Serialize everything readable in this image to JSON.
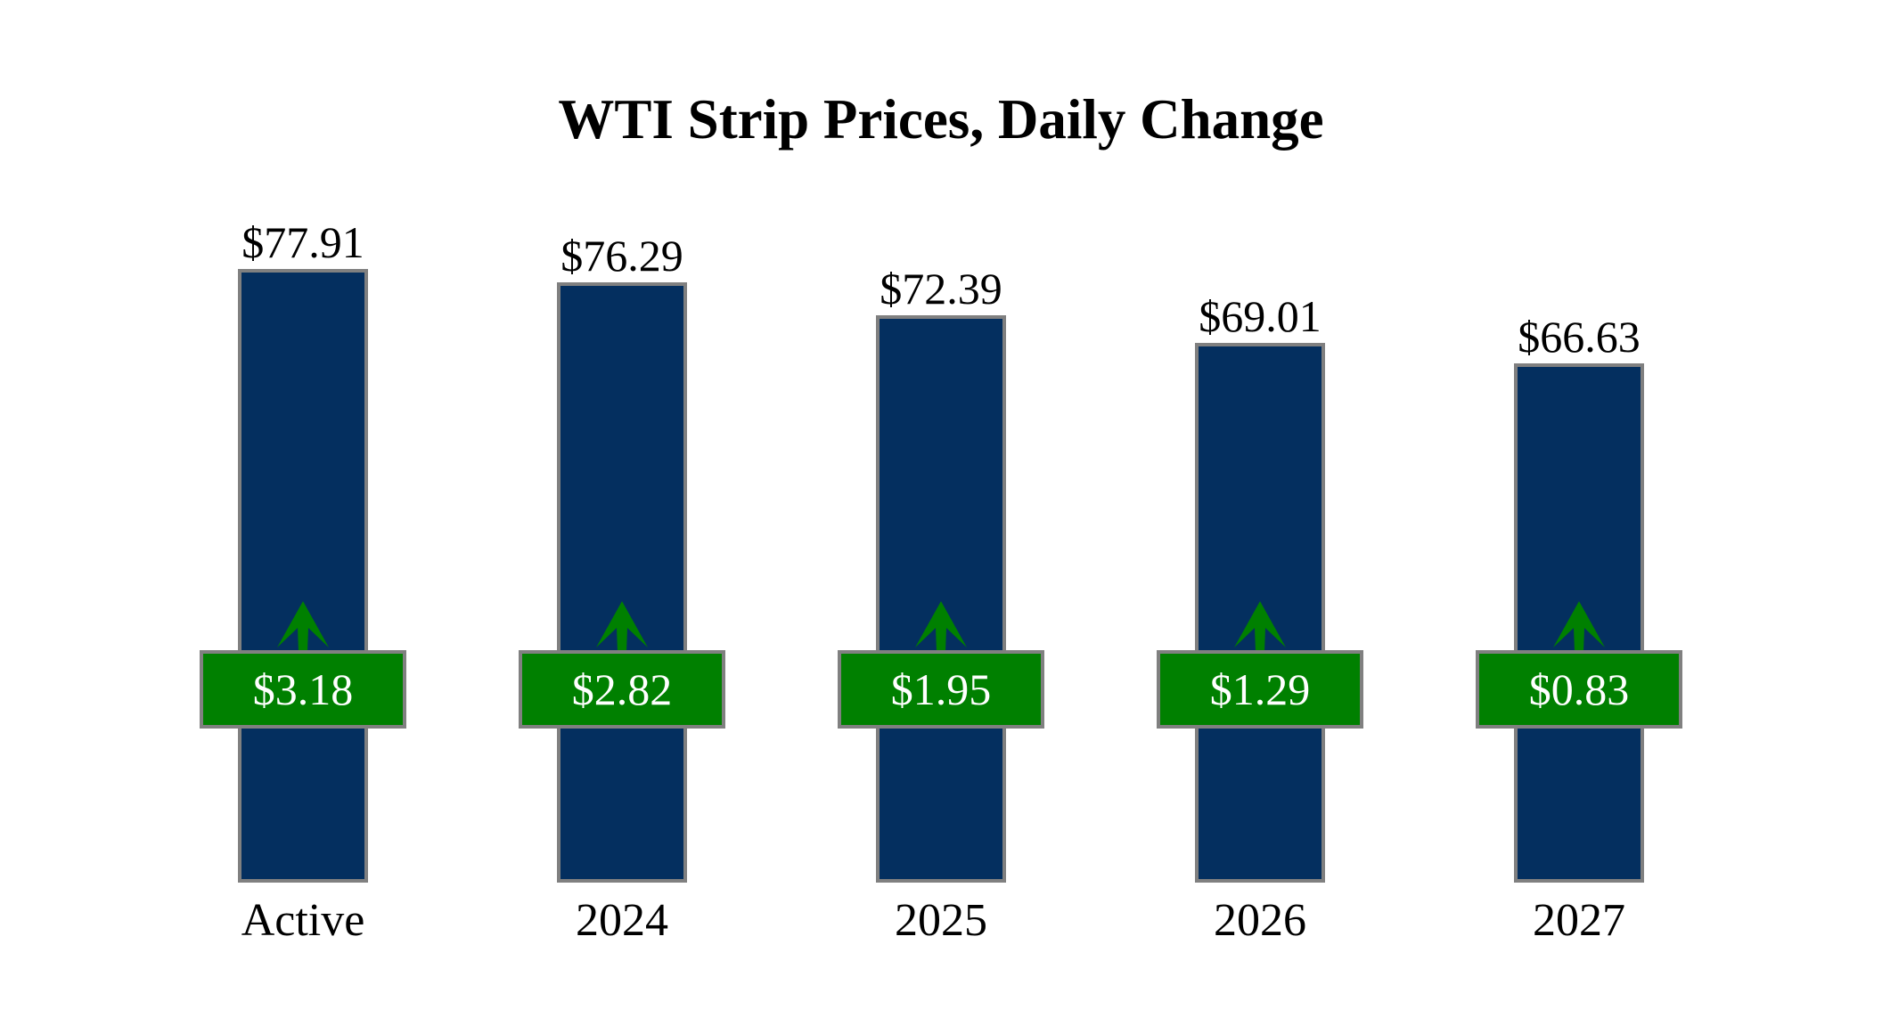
{
  "chart_data": {
    "type": "bar",
    "title": "WTI Strip Prices, Daily Change",
    "categories": [
      "Active",
      "2024",
      "2025",
      "2026",
      "2027"
    ],
    "series": [
      {
        "name": "Strip Price",
        "values": [
          77.91,
          76.29,
          72.39,
          69.01,
          66.63
        ],
        "labels": [
          "$77.91",
          "$76.29",
          "$72.39",
          "$69.01",
          "$66.63"
        ]
      },
      {
        "name": "Daily Change",
        "values": [
          3.18,
          2.82,
          1.95,
          1.29,
          0.83
        ],
        "labels": [
          "$3.18",
          "$2.82",
          "$1.95",
          "$1.29",
          "$0.83"
        ],
        "direction": "up"
      }
    ],
    "legend": "none",
    "grid": false,
    "axes_visible": false,
    "ylim": [
      4.6,
      110
    ],
    "colors": {
      "bar_fill": "#042F5F",
      "bar_border": "#808080",
      "badge_fill": "#008000",
      "badge_border": "#808080",
      "badge_text": "#FFFFFF",
      "arrow": "#008000",
      "label_text": "#000000",
      "background": "#FFFFFF"
    }
  }
}
